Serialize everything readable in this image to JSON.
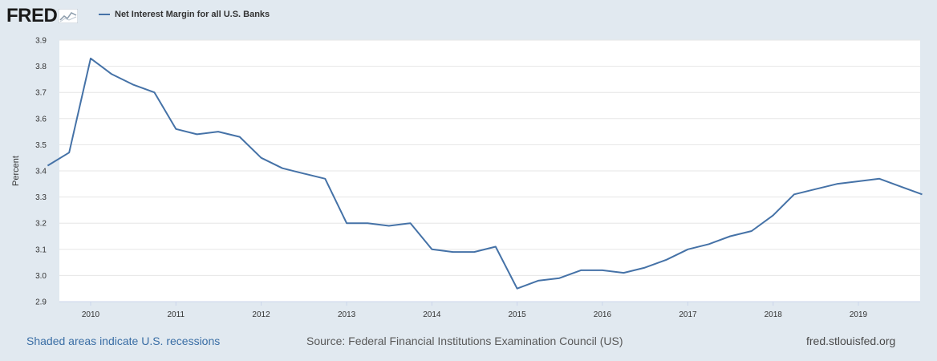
{
  "header": {
    "logo_text": "FRED",
    "series_name": "Net Interest Margin for all U.S. Banks",
    "line_color": "#4572a7"
  },
  "footer": {
    "recession_note": "Shaded areas indicate U.S. recessions",
    "source": "Source: Federal Financial Institutions Examination Council (US)",
    "site": "fred.stlouisfed.org"
  },
  "chart_data": {
    "type": "line",
    "title": "",
    "xlabel": "",
    "ylabel": "Percent",
    "ylim": [
      2.9,
      3.9
    ],
    "yticks": [
      "2.9",
      "3.0",
      "3.1",
      "3.2",
      "3.3",
      "3.4",
      "3.5",
      "3.6",
      "3.7",
      "3.8",
      "3.9"
    ],
    "xticks": [
      "2010",
      "2011",
      "2012",
      "2013",
      "2014",
      "2015",
      "2016",
      "2017",
      "2018",
      "2019"
    ],
    "grid": true,
    "series": [
      {
        "name": "Net Interest Margin for all U.S. Banks",
        "x": [
          "2009-07-01",
          "2009-10-01",
          "2010-01-01",
          "2010-04-01",
          "2010-07-01",
          "2010-10-01",
          "2011-01-01",
          "2011-04-01",
          "2011-07-01",
          "2011-10-01",
          "2012-01-01",
          "2012-04-01",
          "2012-07-01",
          "2012-10-01",
          "2013-01-01",
          "2013-04-01",
          "2013-07-01",
          "2013-10-01",
          "2014-01-01",
          "2014-04-01",
          "2014-07-01",
          "2014-10-01",
          "2015-01-01",
          "2015-04-01",
          "2015-07-01",
          "2015-10-01",
          "2016-01-01",
          "2016-04-01",
          "2016-07-01",
          "2016-10-01",
          "2017-01-01",
          "2017-04-01",
          "2017-07-01",
          "2017-10-01",
          "2018-01-01",
          "2018-04-01",
          "2018-07-01",
          "2018-10-01",
          "2019-01-01",
          "2019-04-01",
          "2019-07-01",
          "2019-10-01"
        ],
        "values": [
          3.42,
          3.47,
          3.83,
          3.77,
          3.73,
          3.7,
          3.56,
          3.54,
          3.55,
          3.53,
          3.45,
          3.41,
          3.39,
          3.37,
          3.2,
          3.2,
          3.19,
          3.2,
          3.1,
          3.09,
          3.09,
          3.11,
          2.95,
          2.98,
          2.99,
          3.02,
          3.02,
          3.01,
          3.03,
          3.06,
          3.1,
          3.12,
          3.15,
          3.17,
          3.23,
          3.31,
          3.33,
          3.35,
          3.36,
          3.37,
          3.34,
          3.31
        ]
      }
    ]
  }
}
